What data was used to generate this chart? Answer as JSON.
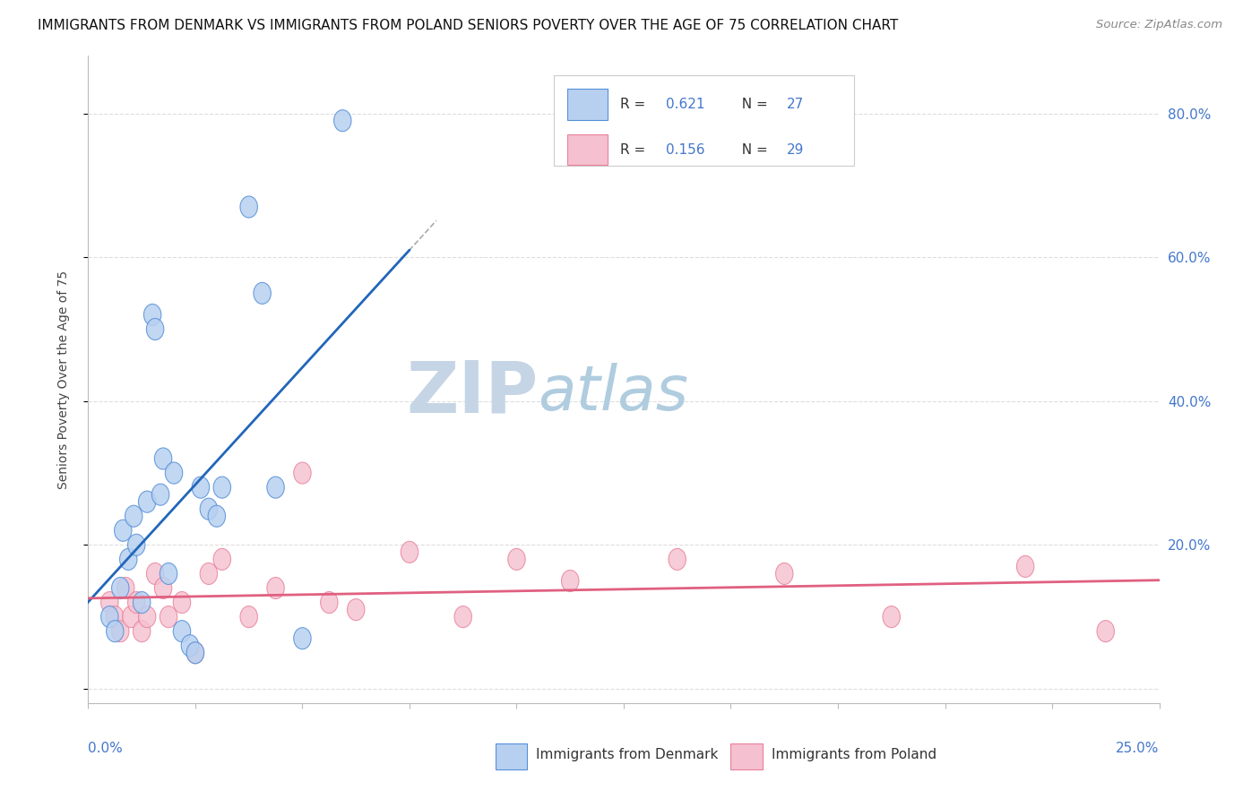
{
  "title": "IMMIGRANTS FROM DENMARK VS IMMIGRANTS FROM POLAND SENIORS POVERTY OVER THE AGE OF 75 CORRELATION CHART",
  "source": "Source: ZipAtlas.com",
  "ylabel": "Seniors Poverty Over the Age of 75",
  "denmark_R": 0.621,
  "denmark_N": 27,
  "poland_R": 0.156,
  "poland_N": 29,
  "denmark_color": "#b8d0f0",
  "denmark_edge_color": "#5590d8",
  "denmark_line_color": "#2266bb",
  "poland_color": "#f5c0d0",
  "poland_edge_color": "#e88098",
  "poland_line_color": "#e06080",
  "legend_label_denmark": "Immigrants from Denmark",
  "legend_label_poland": "Immigrants from Poland",
  "denmark_x": [
    0.0008,
    0.001,
    0.0012,
    0.0013,
    0.0015,
    0.0017,
    0.0018,
    0.002,
    0.0022,
    0.0024,
    0.0025,
    0.0027,
    0.0028,
    0.003,
    0.0032,
    0.0035,
    0.0038,
    0.004,
    0.0042,
    0.0045,
    0.0048,
    0.005,
    0.006,
    0.0065,
    0.007,
    0.008,
    0.0095
  ],
  "denmark_y": [
    0.1,
    0.08,
    0.14,
    0.22,
    0.18,
    0.24,
    0.2,
    0.12,
    0.26,
    0.52,
    0.5,
    0.27,
    0.32,
    0.16,
    0.3,
    0.08,
    0.06,
    0.05,
    0.28,
    0.25,
    0.24,
    0.28,
    0.67,
    0.55,
    0.28,
    0.07,
    0.79
  ],
  "poland_x": [
    0.0008,
    0.001,
    0.0012,
    0.0014,
    0.0016,
    0.0018,
    0.002,
    0.0022,
    0.0025,
    0.0028,
    0.003,
    0.0035,
    0.004,
    0.0045,
    0.005,
    0.006,
    0.007,
    0.008,
    0.009,
    0.01,
    0.012,
    0.014,
    0.016,
    0.018,
    0.022,
    0.026,
    0.03,
    0.035,
    0.038
  ],
  "poland_y": [
    0.12,
    0.1,
    0.08,
    0.14,
    0.1,
    0.12,
    0.08,
    0.1,
    0.16,
    0.14,
    0.1,
    0.12,
    0.05,
    0.16,
    0.18,
    0.1,
    0.14,
    0.3,
    0.12,
    0.11,
    0.19,
    0.1,
    0.18,
    0.15,
    0.18,
    0.16,
    0.1,
    0.17,
    0.08
  ],
  "xlim": [
    0.0,
    0.04
  ],
  "ylim": [
    -0.02,
    0.88
  ],
  "background_color": "#ffffff",
  "grid_color": "#dddddd",
  "watermark_ZIP": "ZIP",
  "watermark_atlas": "atlas",
  "watermark_color_ZIP": "#c8d8e8",
  "watermark_color_atlas": "#b8cce0"
}
